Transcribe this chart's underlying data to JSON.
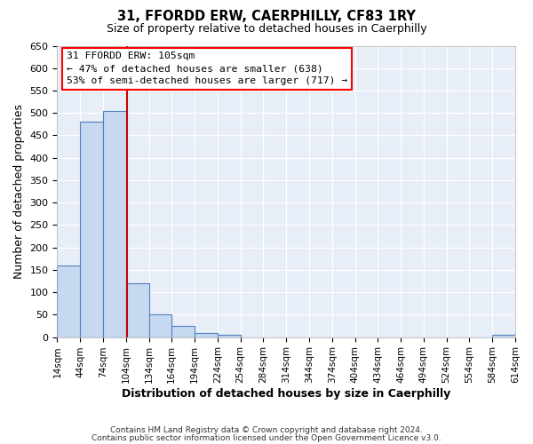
{
  "title": "31, FFORDD ERW, CAERPHILLY, CF83 1RY",
  "subtitle": "Size of property relative to detached houses in Caerphilly",
  "xlabel": "Distribution of detached houses by size in Caerphilly",
  "ylabel": "Number of detached properties",
  "bar_edges": [
    14,
    44,
    74,
    104,
    134,
    164,
    194,
    224,
    254,
    284,
    314,
    344,
    374,
    404,
    434,
    464,
    494,
    524,
    554,
    584,
    614
  ],
  "bar_heights": [
    160,
    480,
    505,
    120,
    50,
    25,
    10,
    5,
    0,
    0,
    0,
    0,
    0,
    0,
    0,
    0,
    0,
    0,
    0,
    5
  ],
  "bar_color": "#c6d9f0",
  "bar_edge_color": "#4f81bd",
  "property_line_x": 105,
  "property_line_color": "#cc0000",
  "ylim": [
    0,
    650
  ],
  "yticks": [
    0,
    50,
    100,
    150,
    200,
    250,
    300,
    350,
    400,
    450,
    500,
    550,
    600,
    650
  ],
  "annotation_title": "31 FFORDD ERW: 105sqm",
  "annotation_line1": "← 47% of detached houses are smaller (638)",
  "annotation_line2": "53% of semi-detached houses are larger (717) →",
  "footer_line1": "Contains HM Land Registry data © Crown copyright and database right 2024.",
  "footer_line2": "Contains public sector information licensed under the Open Government Licence v3.0.",
  "background_color": "#ffffff",
  "plot_bg_color": "#e8eef7",
  "grid_color": "#ffffff"
}
